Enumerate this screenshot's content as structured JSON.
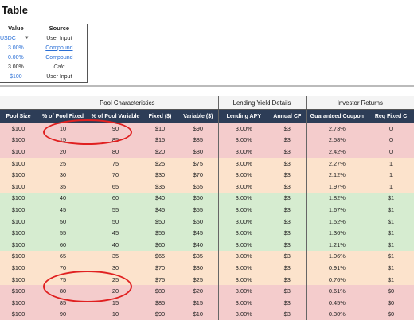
{
  "title": "Table",
  "mini_table": {
    "headers": [
      "Value",
      "Source"
    ],
    "rows": [
      {
        "value": "USDC",
        "source": "User Input",
        "value_style": "dropdown",
        "source_style": "plain"
      },
      {
        "value": "3.00%",
        "source": "Compound",
        "value_style": "blue",
        "source_style": "link"
      },
      {
        "value": "0.00%",
        "source": "Compound",
        "value_style": "blue",
        "source_style": "link"
      },
      {
        "value": "3.00%",
        "source": "Calc",
        "value_style": "plain",
        "source_style": "italic"
      },
      {
        "value": "$100",
        "source": "User Input",
        "value_style": "blue",
        "source_style": "plain"
      }
    ]
  },
  "groups": [
    "Pool Characteristics",
    "Lending Yield Details",
    "Investor Returns"
  ],
  "columns": [
    "Pool Size",
    "% of Pool Fixed",
    "% of Pool Variable",
    "Fixed ($)",
    "Variable ($)",
    "Lending APY",
    "Annual CF",
    "Guaranteed Coupon",
    "Req Fixed C"
  ],
  "colors": {
    "red": "#f4cccc",
    "orange": "#fce3cc",
    "green": "#d6ecd0",
    "header": "#2d3d57",
    "circle": "#e02020"
  },
  "rows": [
    {
      "band": "red",
      "cells": [
        "$100",
        "10",
        "90",
        "$10",
        "$90",
        "3.00%",
        "$3",
        "2.73%",
        "0"
      ]
    },
    {
      "band": "red",
      "cells": [
        "$100",
        "15",
        "85",
        "$15",
        "$85",
        "3.00%",
        "$3",
        "2.58%",
        "0"
      ]
    },
    {
      "band": "red",
      "cells": [
        "$100",
        "20",
        "80",
        "$20",
        "$80",
        "3.00%",
        "$3",
        "2.42%",
        "0"
      ]
    },
    {
      "band": "orange",
      "cells": [
        "$100",
        "25",
        "75",
        "$25",
        "$75",
        "3.00%",
        "$3",
        "2.27%",
        "1"
      ]
    },
    {
      "band": "orange",
      "cells": [
        "$100",
        "30",
        "70",
        "$30",
        "$70",
        "3.00%",
        "$3",
        "2.12%",
        "1"
      ]
    },
    {
      "band": "orange",
      "cells": [
        "$100",
        "35",
        "65",
        "$35",
        "$65",
        "3.00%",
        "$3",
        "1.97%",
        "1"
      ]
    },
    {
      "band": "green",
      "cells": [
        "$100",
        "40",
        "60",
        "$40",
        "$60",
        "3.00%",
        "$3",
        "1.82%",
        "$1"
      ]
    },
    {
      "band": "green",
      "cells": [
        "$100",
        "45",
        "55",
        "$45",
        "$55",
        "3.00%",
        "$3",
        "1.67%",
        "$1"
      ]
    },
    {
      "band": "green",
      "cells": [
        "$100",
        "50",
        "50",
        "$50",
        "$50",
        "3.00%",
        "$3",
        "1.52%",
        "$1"
      ]
    },
    {
      "band": "green",
      "cells": [
        "$100",
        "55",
        "45",
        "$55",
        "$45",
        "3.00%",
        "$3",
        "1.36%",
        "$1"
      ]
    },
    {
      "band": "green",
      "cells": [
        "$100",
        "60",
        "40",
        "$60",
        "$40",
        "3.00%",
        "$3",
        "1.21%",
        "$1"
      ]
    },
    {
      "band": "orange",
      "cells": [
        "$100",
        "65",
        "35",
        "$65",
        "$35",
        "3.00%",
        "$3",
        "1.06%",
        "$1"
      ]
    },
    {
      "band": "orange",
      "cells": [
        "$100",
        "70",
        "30",
        "$70",
        "$30",
        "3.00%",
        "$3",
        "0.91%",
        "$1"
      ]
    },
    {
      "band": "orange",
      "cells": [
        "$100",
        "75",
        "25",
        "$75",
        "$25",
        "3.00%",
        "$3",
        "0.76%",
        "$1"
      ]
    },
    {
      "band": "red",
      "cells": [
        "$100",
        "80",
        "20",
        "$80",
        "$20",
        "3.00%",
        "$3",
        "0.61%",
        "$0"
      ]
    },
    {
      "band": "red",
      "cells": [
        "$100",
        "85",
        "15",
        "$85",
        "$15",
        "3.00%",
        "$3",
        "0.45%",
        "$0"
      ]
    },
    {
      "band": "red",
      "cells": [
        "$100",
        "90",
        "10",
        "$90",
        "$10",
        "3.00%",
        "$3",
        "0.30%",
        "$0"
      ]
    }
  ]
}
